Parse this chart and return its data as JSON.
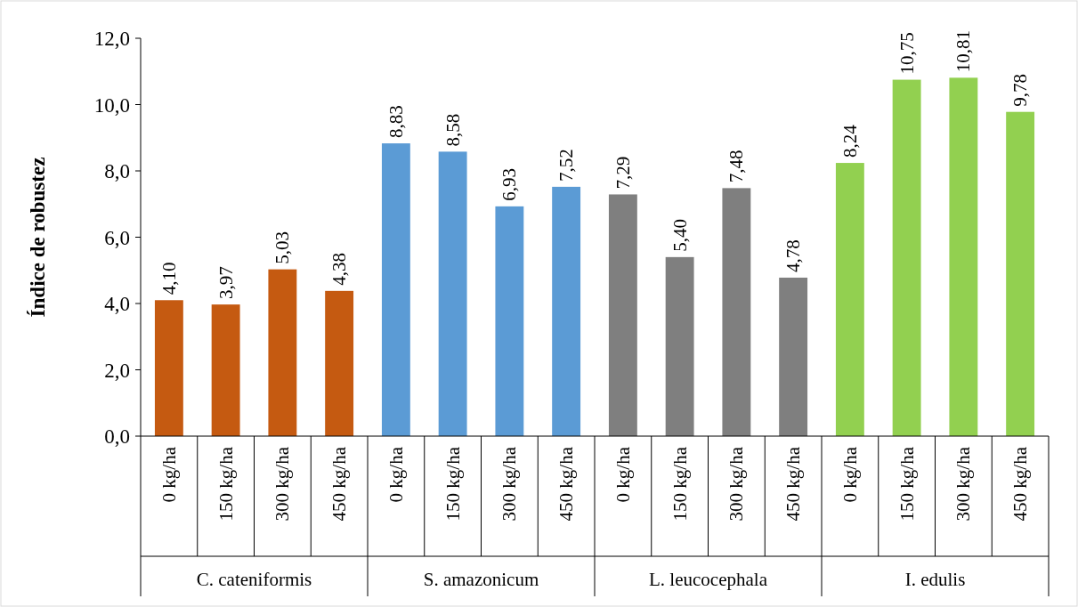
{
  "chart_data": {
    "type": "bar",
    "ylabel": "Índice de robustez",
    "categories": [
      "0 kg/ha",
      "150 kg/ha",
      "300 kg/ha",
      "450 kg/ha",
      "0 kg/ha",
      "150 kg/ha",
      "300 kg/ha",
      "450 kg/ha",
      "0 kg/ha",
      "150 kg/ha",
      "300 kg/ha",
      "450 kg/ha",
      "0 kg/ha",
      "150 kg/ha",
      "300 kg/ha",
      "450 kg/ha"
    ],
    "values": [
      4.1,
      3.97,
      5.03,
      4.38,
      8.83,
      8.58,
      6.93,
      7.52,
      7.29,
      5.4,
      7.48,
      4.78,
      8.24,
      10.75,
      10.81,
      9.78
    ],
    "value_labels": [
      "4,10",
      "3,97",
      "5,03",
      "4,38",
      "8,83",
      "8,58",
      "6,93",
      "7,52",
      "7,29",
      "5,40",
      "7,48",
      "4,78",
      "8,24",
      "10,75",
      "10,81",
      "9,78"
    ],
    "colors": [
      "#c55a11",
      "#c55a11",
      "#c55a11",
      "#c55a11",
      "#5b9bd5",
      "#5b9bd5",
      "#5b9bd5",
      "#5b9bd5",
      "#7f7f7f",
      "#7f7f7f",
      "#7f7f7f",
      "#7f7f7f",
      "#92d050",
      "#92d050",
      "#92d050",
      "#92d050"
    ],
    "annotations": [
      "C. cateniformis",
      "S. amazonicum",
      "L. leucocephala",
      "I. edulis"
    ],
    "ylim": [
      0,
      12
    ],
    "yticks": [
      {
        "value": 0,
        "label": "0,0"
      },
      {
        "value": 2,
        "label": "2,0"
      },
      {
        "value": 4,
        "label": "4,0"
      },
      {
        "value": 6,
        "label": "6,0"
      },
      {
        "value": 8,
        "label": "8,0"
      },
      {
        "value": 10,
        "label": "10,0"
      },
      {
        "value": 12,
        "label": "12,0"
      }
    ],
    "grid": false
  }
}
